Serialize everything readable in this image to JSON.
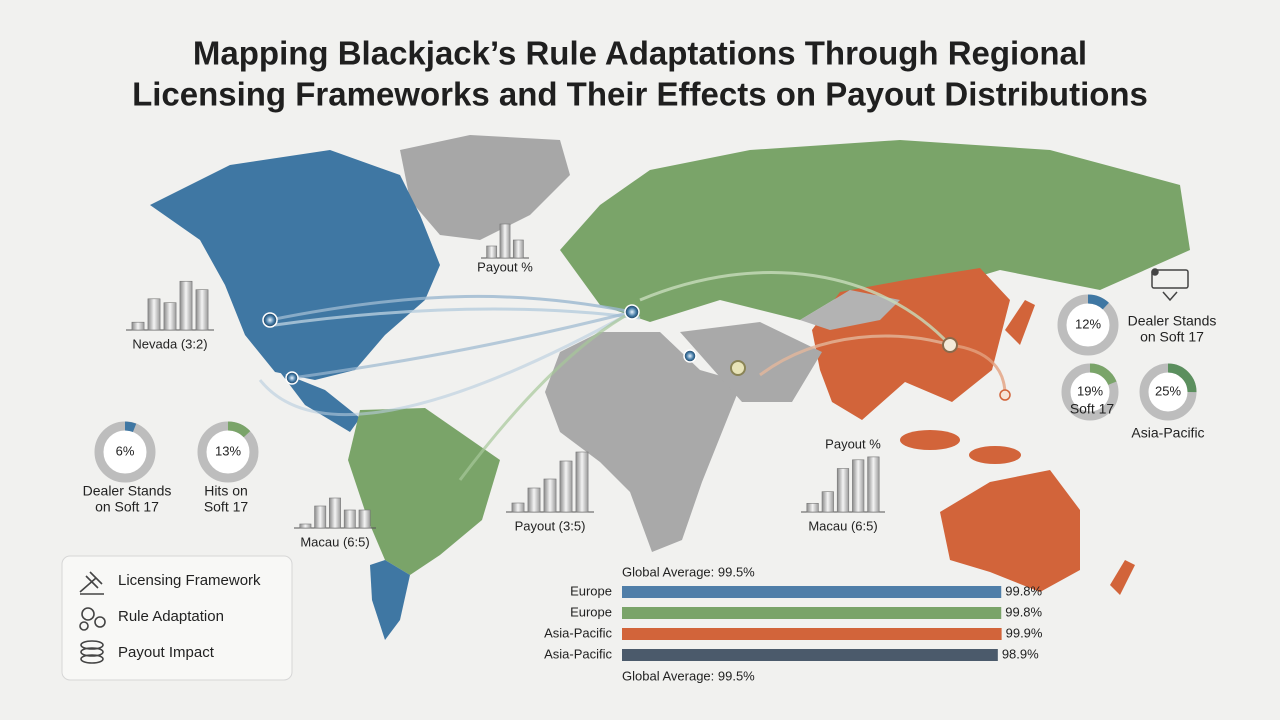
{
  "title_lines": [
    "Mapping Blackjack’s Rule Adaptations Through Regional",
    "Licensing Frameworks and Their Effects on Payout Distributions"
  ],
  "mini_charts": [
    {
      "label": "Nevada (3:2)",
      "ylim": [
        0,
        100
      ],
      "values": [
        12,
        48,
        42,
        75,
        62
      ]
    },
    {
      "label": "Payout %",
      "ylim": [
        0,
        100
      ],
      "values": [
        30,
        85,
        45
      ]
    },
    {
      "label": "Macau (6:5)",
      "ylim": [
        0,
        100
      ],
      "values": [
        10,
        55,
        75,
        45,
        45
      ]
    },
    {
      "label": "Payout (3:5)",
      "ylim": [
        0,
        100
      ],
      "values": [
        15,
        40,
        55,
        85,
        100
      ]
    },
    {
      "title": "Payout %",
      "label": "Macau (6:5)",
      "ylim": [
        0,
        100
      ],
      "values": [
        15,
        35,
        75,
        90,
        95
      ]
    }
  ],
  "donuts": [
    {
      "value": 6,
      "value_label": "6%",
      "caption": [
        "Dealer Stands",
        "on Soft 17"
      ],
      "color": "#3f77a3"
    },
    {
      "value": 13,
      "value_label": "13%",
      "caption": [
        "Hits on",
        "Soft 17"
      ],
      "color": "#7aa469"
    },
    {
      "value": 12,
      "value_label": "12%",
      "caption": [
        "Dealer Stands",
        "on Soft 17"
      ],
      "color": "#3f77a3"
    },
    {
      "value": 19,
      "value_label": "19%",
      "caption": [
        "Soft 17"
      ],
      "color": "#7aa469"
    },
    {
      "value": 25,
      "value_label": "25%",
      "caption": [
        "Asia-Pacific"
      ],
      "color": "#5b8f5e"
    }
  ],
  "legend": [
    "Licensing Framework",
    "Rule Adaptation",
    "Payout Impact"
  ],
  "chart_data": {
    "type": "bar",
    "top_note": "Global Average: 99.5%",
    "bottom_note": "Global Average: 99.5%",
    "categories": [
      "Europe",
      "Europe",
      "Asia-Pacific",
      "Asia-Pacific"
    ],
    "values": [
      99.8,
      99.8,
      99.9,
      98.9
    ],
    "value_labels": [
      "99.8%",
      "99.8%",
      "99.9%",
      "98.9%"
    ],
    "colors": [
      "#4f7ea8",
      "#7aa469",
      "#d2643a",
      "#4b5a6b"
    ],
    "xlim": [
      0,
      100
    ]
  }
}
